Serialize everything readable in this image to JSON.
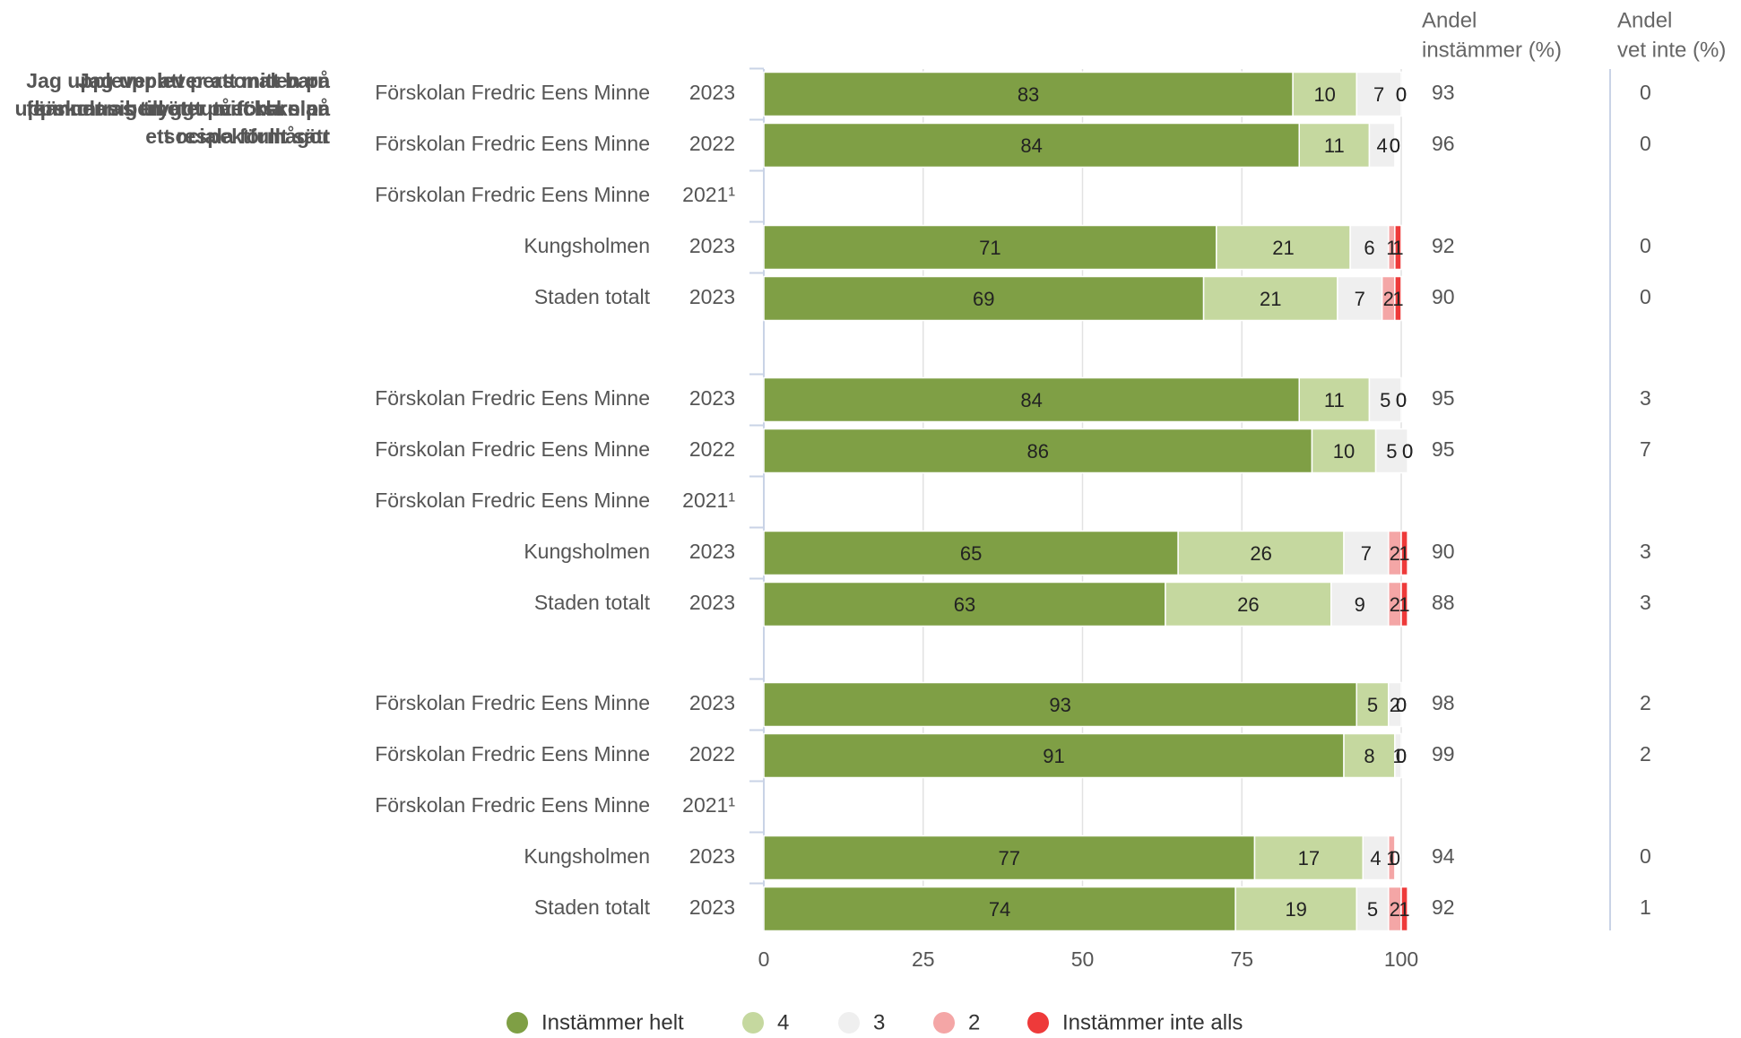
{
  "chart_data": {
    "type": "bar",
    "orientation": "horizontal",
    "stacked": true,
    "xlim": [
      0,
      100
    ],
    "xticks": [
      0,
      25,
      50,
      75,
      100
    ],
    "grid": true,
    "series": [
      {
        "name": "Instämmer helt",
        "color": "#7f9f45"
      },
      {
        "name": "4",
        "color": "#c5d89f"
      },
      {
        "name": "3",
        "color": "#efefef"
      },
      {
        "name": "2",
        "color": "#f4a6a6"
      },
      {
        "name": "Instämmer inte alls",
        "color": "#ee3a3a"
      }
    ],
    "agree_header": [
      "Andel",
      "instämmer (%)"
    ],
    "dont_know_header": [
      "Andel",
      "vet inte (%)"
    ],
    "panels": [
      {
        "title": [
          "Jag upplever att mitt barn",
          "känner sig tryggt på förskolan"
        ],
        "categories": [
          "Förskolan Fredric Eens Minne",
          "Förskolan Fredric Eens Minne",
          "Förskolan Fredric Eens Minne",
          "Kungsholmen",
          "Staden totalt"
        ],
        "years": [
          "2023",
          "2022",
          "2021¹",
          "2023",
          "2023"
        ],
        "values": [
          [
            83,
            10,
            7,
            0,
            0
          ],
          [
            84,
            11,
            4,
            0,
            0
          ],
          null,
          [
            71,
            21,
            6,
            1,
            1
          ],
          [
            69,
            21,
            7,
            2,
            1
          ]
        ],
        "agree": [
          93,
          96,
          null,
          92,
          90
        ],
        "dont_know": [
          0,
          0,
          null,
          0,
          0
        ]
      },
      {
        "title": [
          "Jag upplever att mitt barn",
          "uppmuntras till att utveckla sina",
          "sociala förmågor"
        ],
        "categories": [
          "Förskolan Fredric Eens Minne",
          "Förskolan Fredric Eens Minne",
          "Förskolan Fredric Eens Minne",
          "Kungsholmen",
          "Staden totalt"
        ],
        "years": [
          "2023",
          "2022",
          "2021¹",
          "2023",
          "2023"
        ],
        "values": [
          [
            84,
            11,
            5,
            0,
            0
          ],
          [
            86,
            10,
            5,
            0,
            0
          ],
          null,
          [
            65,
            26,
            7,
            2,
            1
          ],
          [
            63,
            26,
            9,
            2,
            1
          ]
        ],
        "agree": [
          95,
          95,
          null,
          90,
          88
        ],
        "dont_know": [
          3,
          7,
          null,
          3,
          3
        ]
      },
      {
        "title": [
          "Jag upplever att personalen på",
          "förskolan bemöter mitt barn på",
          "ett respektfullt sätt"
        ],
        "categories": [
          "Förskolan Fredric Eens Minne",
          "Förskolan Fredric Eens Minne",
          "Förskolan Fredric Eens Minne",
          "Kungsholmen",
          "Staden totalt"
        ],
        "years": [
          "2023",
          "2022",
          "2021¹",
          "2023",
          "2023"
        ],
        "values": [
          [
            93,
            5,
            2,
            0,
            0
          ],
          [
            91,
            8,
            1,
            0,
            0
          ],
          null,
          [
            77,
            17,
            4,
            1,
            0
          ],
          [
            74,
            19,
            5,
            2,
            1
          ]
        ],
        "agree": [
          98,
          99,
          null,
          94,
          92
        ],
        "dont_know": [
          2,
          2,
          null,
          0,
          1
        ]
      }
    ]
  }
}
